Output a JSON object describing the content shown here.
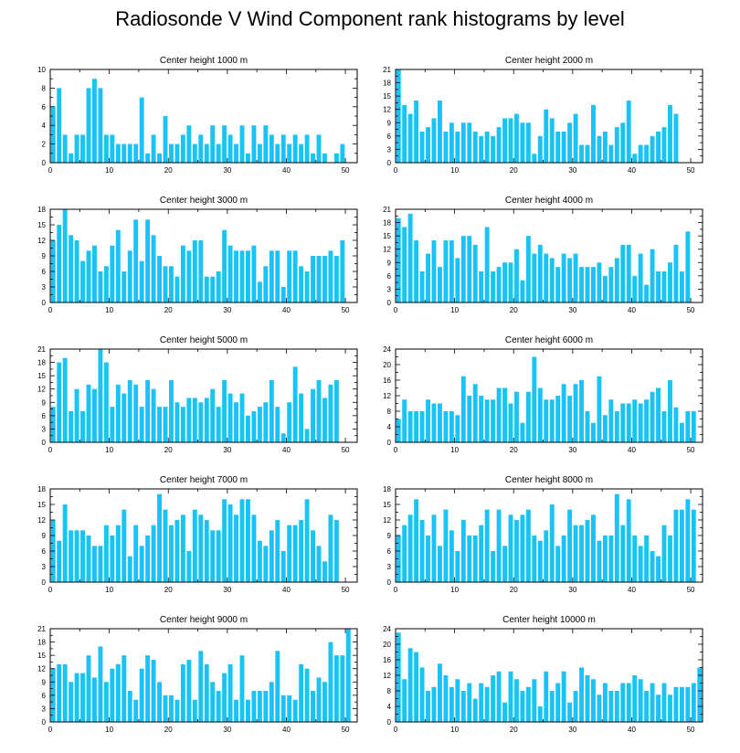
{
  "figure": {
    "title": "Radiosonde V Wind Component rank histograms by level",
    "bar_color": "#19c3f5"
  },
  "chart_data": [
    {
      "type": "bar",
      "title": "Center height 1000 m",
      "x_ticks": [
        0,
        10,
        20,
        30,
        40,
        50
      ],
      "xlim": [
        0,
        52
      ],
      "ylim": [
        0,
        10
      ],
      "y_ticks": [
        0,
        2,
        4,
        6,
        8,
        10
      ],
      "values": [
        6,
        8,
        3,
        1,
        3,
        3,
        8,
        9,
        8,
        3,
        3,
        2,
        2,
        2,
        2,
        7,
        1,
        3,
        1,
        5,
        2,
        2,
        3,
        4,
        2,
        3,
        2,
        4,
        2,
        4,
        3,
        2,
        4,
        1,
        4,
        2,
        4,
        3,
        2,
        3,
        2,
        3,
        2,
        3,
        1,
        3,
        1,
        0,
        1,
        2,
        0,
        0
      ]
    },
    {
      "type": "bar",
      "title": "Center height 2000 m",
      "x_ticks": [
        0,
        10,
        20,
        30,
        40,
        50
      ],
      "xlim": [
        0,
        52
      ],
      "ylim": [
        0,
        21
      ],
      "y_ticks": [
        0,
        3,
        6,
        9,
        12,
        15,
        18,
        21
      ],
      "values": [
        21,
        13,
        11,
        14,
        7,
        8,
        10,
        14,
        7,
        9,
        7,
        9,
        9,
        7,
        6,
        7,
        6,
        8,
        10,
        10,
        11,
        9,
        9,
        2,
        6,
        12,
        10,
        7,
        7,
        9,
        11,
        4,
        4,
        13,
        6,
        7,
        4,
        8,
        9,
        14,
        2,
        4,
        4,
        6,
        7,
        8,
        13,
        11,
        0,
        0,
        0,
        0
      ]
    },
    {
      "type": "bar",
      "title": "Center height 3000 m",
      "x_ticks": [
        0,
        10,
        20,
        30,
        40,
        50
      ],
      "xlim": [
        0,
        52
      ],
      "ylim": [
        0,
        18
      ],
      "y_ticks": [
        0,
        3,
        6,
        9,
        12,
        15,
        18
      ],
      "values": [
        12,
        15,
        18,
        13,
        12,
        8,
        10,
        11,
        6,
        7,
        11,
        14,
        6,
        10,
        16,
        8,
        16,
        13,
        9,
        7,
        7,
        5,
        11,
        10,
        12,
        12,
        5,
        5,
        6,
        14,
        11,
        10,
        10,
        10,
        11,
        4,
        7,
        10,
        10,
        3,
        10,
        10,
        7,
        6,
        9,
        9,
        9,
        10,
        9,
        12,
        0,
        0
      ]
    },
    {
      "type": "bar",
      "title": "Center height 4000 m",
      "x_ticks": [
        0,
        10,
        20,
        30,
        40,
        50
      ],
      "xlim": [
        0,
        52
      ],
      "ylim": [
        0,
        21
      ],
      "y_ticks": [
        0,
        3,
        6,
        9,
        12,
        15,
        18,
        21
      ],
      "values": [
        19,
        17,
        20,
        14,
        7,
        11,
        14,
        8,
        14,
        14,
        10,
        15,
        15,
        13,
        7,
        17,
        7,
        8,
        9,
        9,
        12,
        5,
        15,
        11,
        13,
        11,
        10,
        8,
        11,
        10,
        11,
        8,
        8,
        8,
        9,
        6,
        8,
        10,
        13,
        13,
        6,
        11,
        4,
        12,
        7,
        7,
        9,
        13,
        7,
        16,
        0,
        0
      ]
    },
    {
      "type": "bar",
      "title": "Center height 5000 m",
      "x_ticks": [
        0,
        10,
        20,
        30,
        40,
        50
      ],
      "xlim": [
        0,
        52
      ],
      "ylim": [
        0,
        21
      ],
      "y_ticks": [
        0,
        3,
        6,
        9,
        12,
        15,
        18,
        21
      ],
      "values": [
        8,
        18,
        19,
        7,
        12,
        7,
        13,
        12,
        21,
        18,
        8,
        13,
        11,
        14,
        13,
        8,
        14,
        12,
        8,
        8,
        14,
        9,
        8,
        10,
        10,
        9,
        10,
        12,
        8,
        14,
        11,
        9,
        11,
        6,
        7,
        8,
        9,
        14,
        8,
        2,
        9,
        17,
        11,
        3,
        12,
        14,
        10,
        13,
        14,
        0,
        0,
        0
      ]
    },
    {
      "type": "bar",
      "title": "Center height 6000 m",
      "x_ticks": [
        0,
        10,
        20,
        30,
        40,
        50
      ],
      "xlim": [
        0,
        52
      ],
      "ylim": [
        0,
        24
      ],
      "y_ticks": [
        0,
        4,
        8,
        12,
        16,
        20,
        24
      ],
      "values": [
        6,
        11,
        8,
        8,
        8,
        11,
        10,
        10,
        8,
        8,
        7,
        17,
        12,
        15,
        12,
        11,
        11,
        14,
        14,
        10,
        13,
        5,
        13,
        22,
        14,
        11,
        11,
        12,
        15,
        12,
        15,
        16,
        8,
        5,
        17,
        7,
        11,
        8,
        10,
        10,
        11,
        10,
        11,
        13,
        14,
        8,
        16,
        9,
        5,
        8,
        8,
        0
      ]
    },
    {
      "type": "bar",
      "title": "Center height 7000 m",
      "x_ticks": [
        0,
        10,
        20,
        30,
        40,
        50
      ],
      "xlim": [
        0,
        52
      ],
      "ylim": [
        0,
        18
      ],
      "y_ticks": [
        0,
        3,
        6,
        9,
        12,
        15,
        18
      ],
      "values": [
        12,
        8,
        15,
        10,
        10,
        10,
        9,
        7,
        7,
        11,
        9,
        11,
        14,
        5,
        11,
        7,
        9,
        11,
        17,
        14,
        11,
        12,
        13,
        6,
        14,
        13,
        12,
        10,
        10,
        16,
        15,
        13,
        16,
        16,
        13,
        8,
        7,
        10,
        12,
        6,
        11,
        11,
        12,
        16,
        10,
        7,
        4,
        13,
        12,
        0,
        0,
        0
      ]
    },
    {
      "type": "bar",
      "title": "Center height 8000 m",
      "x_ticks": [
        0,
        10,
        20,
        30,
        40,
        50
      ],
      "xlim": [
        0,
        52
      ],
      "ylim": [
        0,
        18
      ],
      "y_ticks": [
        0,
        3,
        6,
        9,
        12,
        15,
        18
      ],
      "values": [
        9,
        11,
        13,
        16,
        12,
        9,
        13,
        7,
        14,
        10,
        6,
        12,
        9,
        9,
        11,
        14,
        6,
        14,
        7,
        13,
        12,
        13,
        14,
        9,
        8,
        10,
        15,
        7,
        9,
        14,
        11,
        11,
        12,
        13,
        8,
        9,
        9,
        17,
        11,
        16,
        9,
        7,
        9,
        6,
        5,
        11,
        9,
        14,
        14,
        16,
        14,
        0
      ]
    },
    {
      "type": "bar",
      "title": "Center height 9000 m",
      "x_ticks": [
        0,
        10,
        20,
        30,
        40,
        50
      ],
      "xlim": [
        0,
        52
      ],
      "ylim": [
        0,
        21
      ],
      "y_ticks": [
        0,
        3,
        6,
        9,
        12,
        15,
        18,
        21
      ],
      "values": [
        12,
        13,
        13,
        9,
        11,
        11,
        15,
        10,
        17,
        9,
        12,
        13,
        15,
        7,
        5,
        12,
        15,
        14,
        9,
        6,
        6,
        5,
        13,
        14,
        5,
        16,
        13,
        9,
        7,
        11,
        13,
        5,
        15,
        5,
        7,
        7,
        7,
        9,
        16,
        6,
        6,
        5,
        13,
        12,
        7,
        10,
        9,
        18,
        15,
        15,
        21,
        0
      ]
    },
    {
      "type": "bar",
      "title": "Center height 10000 m",
      "x_ticks": [
        0,
        10,
        20,
        30,
        40,
        50
      ],
      "xlim": [
        0,
        52
      ],
      "ylim": [
        0,
        24
      ],
      "y_ticks": [
        0,
        4,
        8,
        12,
        16,
        20,
        24
      ],
      "values": [
        23,
        11,
        19,
        18,
        14,
        8,
        9,
        15,
        12,
        9,
        11,
        8,
        10,
        6,
        10,
        9,
        12,
        13,
        5,
        13,
        11,
        8,
        9,
        11,
        4,
        13,
        8,
        10,
        13,
        5,
        8,
        14,
        12,
        11,
        7,
        10,
        8,
        8,
        10,
        10,
        12,
        11,
        8,
        10,
        7,
        10,
        7,
        9,
        9,
        9,
        10,
        14
      ]
    }
  ]
}
